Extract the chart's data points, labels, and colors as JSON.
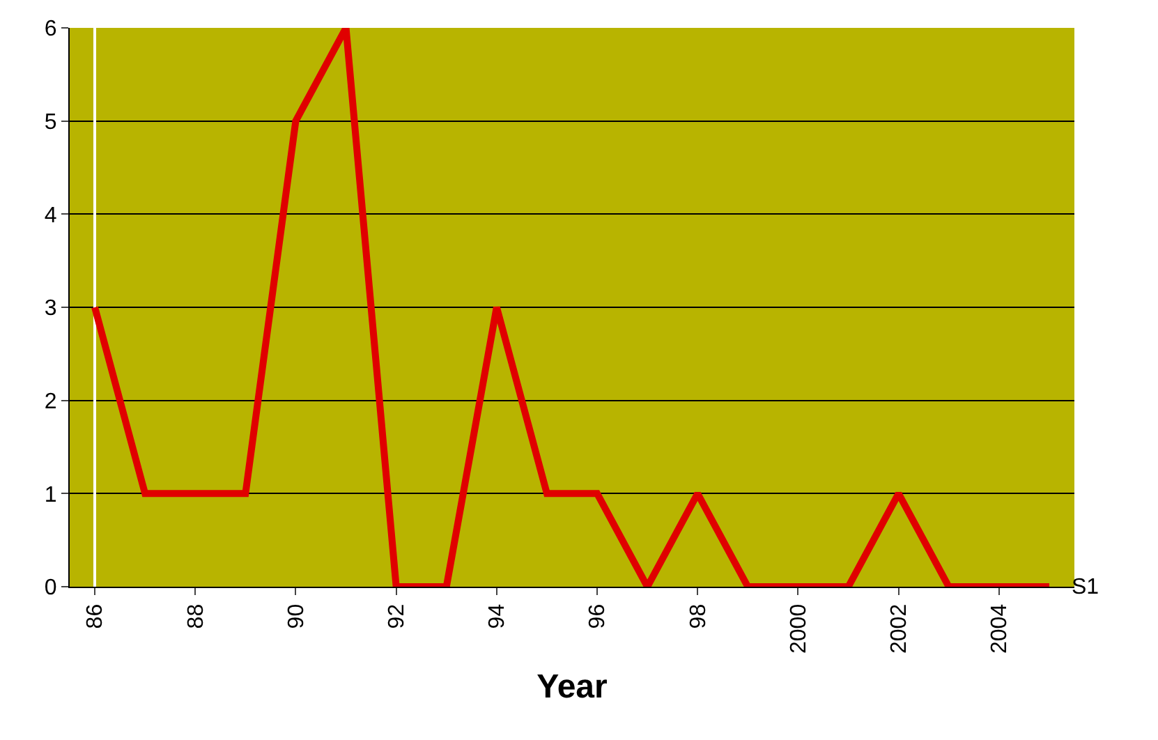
{
  "chart_data": {
    "type": "line",
    "xlabel": "Year",
    "categories": [
      "86",
      null,
      "88",
      null,
      "90",
      null,
      "92",
      null,
      "94",
      null,
      "96",
      null,
      "98",
      null,
      "2000",
      null,
      "2002",
      null,
      "2004",
      null
    ],
    "series": [
      {
        "name": "S1",
        "color": "#e00000",
        "values": [
          3,
          1,
          1,
          1,
          5,
          6,
          0,
          0,
          3,
          1,
          1,
          0,
          1,
          0,
          0,
          0,
          1,
          0,
          0,
          0
        ]
      }
    ],
    "ylim": [
      0,
      6
    ],
    "yticks": [
      0,
      1,
      2,
      3,
      4,
      5,
      6
    ],
    "grid": "y",
    "legend": false,
    "marker": "none",
    "line_style": "solid"
  }
}
